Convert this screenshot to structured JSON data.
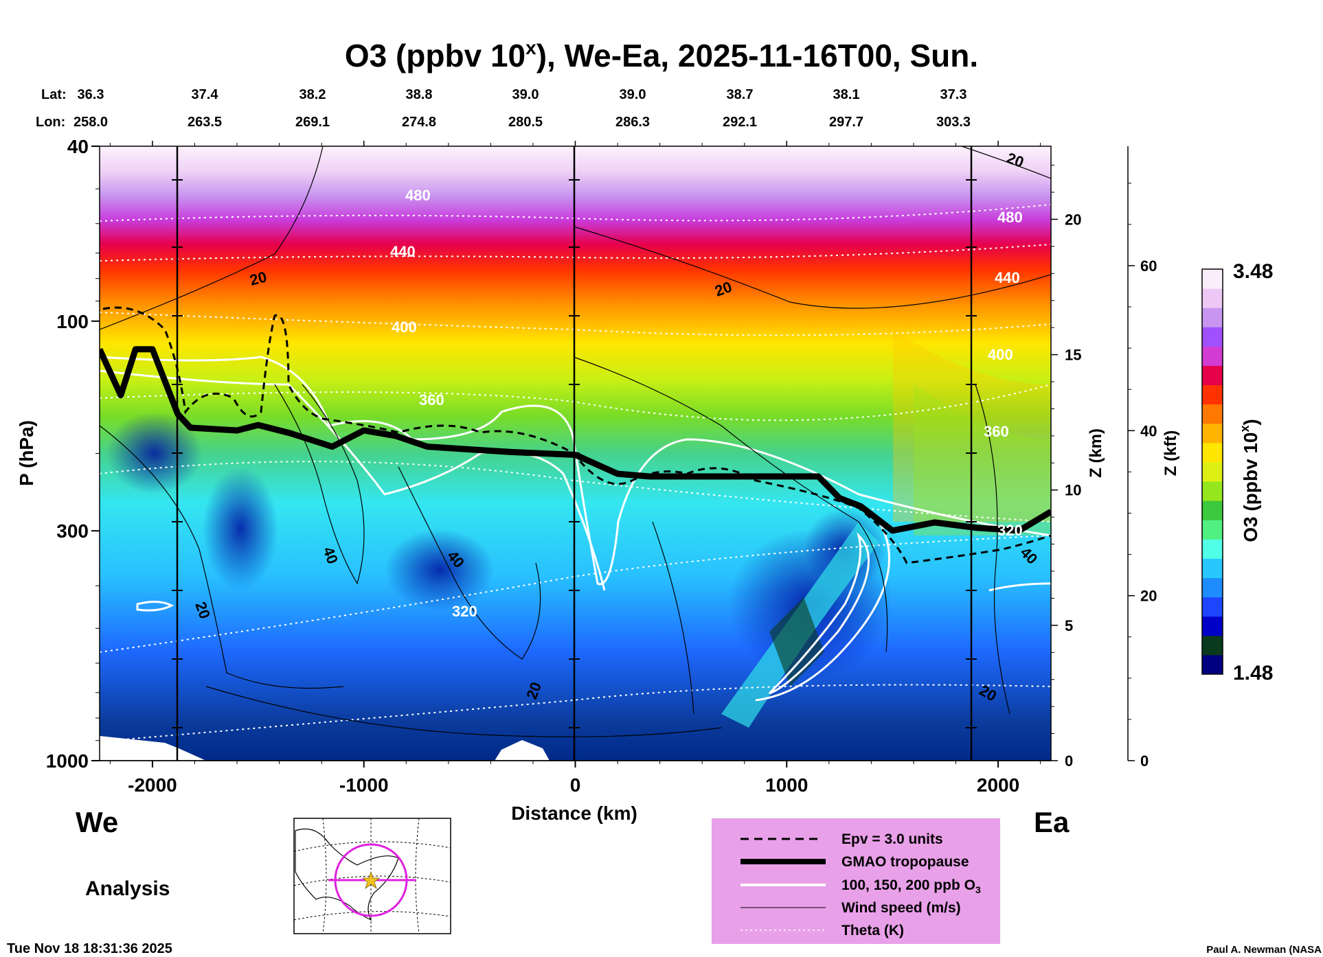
{
  "chart_data": {
    "type": "heatmap",
    "title": "O3 (ppbv 10",
    "title_sup": "x",
    "title_rest": "), We-Ea, 2025-11-16T00, Sun.",
    "lat_label": "Lat:",
    "lon_label": "Lon:",
    "lat_values": [
      "36.3",
      "37.4",
      "38.2",
      "38.8",
      "39.0",
      "39.0",
      "38.7",
      "38.1",
      "37.3"
    ],
    "lon_values": [
      "258.0",
      "263.5",
      "269.1",
      "274.8",
      "280.5",
      "286.3",
      "292.1",
      "297.7",
      "303.3"
    ],
    "xlabel": "Distance (km)",
    "xlim": [
      -2250,
      2250
    ],
    "x_ticks": [
      -2000,
      -1000,
      0,
      1000,
      2000
    ],
    "x_tick_labels": [
      "-2000",
      "-1000",
      "0",
      "1000",
      "2000"
    ],
    "ylabel": "P (hPa)",
    "ylim": [
      1000,
      40
    ],
    "y_scale": "log",
    "y_tick_labels": [
      "40",
      "100",
      "300",
      "1000"
    ],
    "y_ticks": [
      40,
      100,
      300,
      1000
    ],
    "z_km_label": "Z (km)",
    "z_km_ticks": [
      "0",
      "5",
      "10",
      "15",
      "20"
    ],
    "z_kft_label": "Z (kft)",
    "z_kft_ticks": [
      "0",
      "20",
      "40",
      "60"
    ],
    "colorbar_label": "O3 (ppbv 10",
    "colorbar_label_sup": "x",
    "colorbar_label_rest": ")",
    "colorbar_max": "3.48",
    "colorbar_min": "1.48",
    "colorbar_colors": [
      "#000080",
      "#0a3a1e",
      "#0000c8",
      "#1e46ff",
      "#1e8cff",
      "#28c8ff",
      "#50ffe6",
      "#50f082",
      "#3cc83c",
      "#96e61e",
      "#dcf014",
      "#ffe600",
      "#ffb400",
      "#ff7800",
      "#ff3200",
      "#e6004b",
      "#d23cd2",
      "#a050ff",
      "#c896f0",
      "#eec8f4",
      "#fbeefb"
    ],
    "side_labels": {
      "west": "We",
      "east": "Ea"
    },
    "analysis_label": "Analysis",
    "timestamp": "Tue Nov 18 18:31:36 2025",
    "credit": "Paul A. Newman (NASA",
    "contour_labels": {
      "theta": [
        "480",
        "440",
        "400",
        "360",
        "320",
        "480",
        "440",
        "400",
        "360",
        "320"
      ],
      "wind": [
        "20",
        "20",
        "20",
        "40",
        "40",
        "20",
        "20",
        "40",
        "20"
      ]
    },
    "tropopause_km": [
      [
        -2250,
        15.2
      ],
      [
        -2150,
        13.5
      ],
      [
        -2080,
        15.2
      ],
      [
        -2000,
        15.2
      ],
      [
        -1880,
        12.8
      ],
      [
        -1820,
        12.3
      ],
      [
        -1600,
        12.2
      ],
      [
        -1500,
        12.4
      ],
      [
        -1350,
        12.1
      ],
      [
        -1150,
        11.6
      ],
      [
        -1000,
        12.2
      ],
      [
        -850,
        12.0
      ],
      [
        -700,
        11.6
      ],
      [
        -500,
        11.5
      ],
      [
        -300,
        11.4
      ],
      [
        0,
        11.3
      ],
      [
        200,
        10.6
      ],
      [
        350,
        10.5
      ],
      [
        600,
        10.5
      ],
      [
        900,
        10.5
      ],
      [
        1150,
        10.5
      ],
      [
        1250,
        9.7
      ],
      [
        1350,
        9.4
      ],
      [
        1500,
        8.5
      ],
      [
        1700,
        8.8
      ],
      [
        1900,
        8.6
      ],
      [
        2100,
        8.5
      ],
      [
        2250,
        9.2
      ]
    ],
    "legend": [
      {
        "label": "Epv = 3.0 units",
        "style": "dashed"
      },
      {
        "label": "GMAO tropopause",
        "style": "thick"
      },
      {
        "label": "100, 150, 200 ppb O",
        "sub": "3",
        "style": "white"
      },
      {
        "label": "Wind speed (m/s)",
        "style": "thin"
      },
      {
        "label": "Theta (K)",
        "style": "dotted"
      }
    ],
    "colors": {
      "legend_bg": "#e8a0e8",
      "map_circle": "#e020e0",
      "map_star": "#f0c020"
    }
  }
}
